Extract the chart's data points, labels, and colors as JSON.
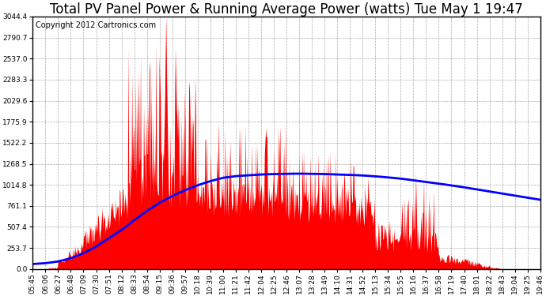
{
  "title": "Total PV Panel Power & Running Average Power (watts) Tue May 1 19:47",
  "copyright_text": "Copyright 2012 Cartronics.com",
  "background_color": "#ffffff",
  "plot_bg_color": "#ffffff",
  "grid_color": "#888888",
  "fill_color": "#ff0000",
  "line_color": "#0000ff",
  "ytick_labels": [
    "0.0",
    "253.7",
    "507.4",
    "761.1",
    "1014.8",
    "1268.5",
    "1522.2",
    "1775.9",
    "2029.6",
    "2283.3",
    "2537.0",
    "2790.7",
    "3044.4"
  ],
  "ytick_values": [
    0.0,
    253.7,
    507.4,
    761.1,
    1014.8,
    1268.5,
    1522.2,
    1775.9,
    2029.6,
    2283.3,
    2537.0,
    2790.7,
    3044.4
  ],
  "ymax": 3044.4,
  "ymin": 0.0,
  "xtick_labels": [
    "05:45",
    "06:06",
    "06:27",
    "06:48",
    "07:09",
    "07:30",
    "07:51",
    "08:12",
    "08:33",
    "08:54",
    "09:15",
    "09:36",
    "09:57",
    "10:18",
    "10:39",
    "11:00",
    "11:21",
    "11:42",
    "12:04",
    "12:25",
    "12:46",
    "13:07",
    "13:28",
    "13:49",
    "14:10",
    "14:31",
    "14:52",
    "15:13",
    "15:34",
    "15:55",
    "16:16",
    "16:37",
    "16:58",
    "17:19",
    "17:40",
    "18:01",
    "18:22",
    "18:43",
    "19:04",
    "19:25",
    "19:46"
  ],
  "num_xticks": 41,
  "title_fontsize": 12,
  "copyright_fontsize": 7,
  "tick_fontsize": 6.5,
  "line_width": 2.0,
  "avg_x": [
    0,
    1,
    2,
    3,
    4,
    5,
    6,
    7,
    8,
    9,
    10,
    11,
    12,
    13,
    14,
    15,
    16,
    17,
    18,
    19,
    20,
    21,
    22,
    23,
    24,
    25,
    26,
    27,
    28,
    29,
    30,
    31,
    32,
    33,
    34,
    35,
    36,
    37,
    38,
    39,
    40
  ],
  "avg_y": [
    60,
    70,
    90,
    130,
    190,
    270,
    370,
    470,
    590,
    700,
    800,
    880,
    950,
    1010,
    1060,
    1100,
    1120,
    1130,
    1140,
    1145,
    1148,
    1150,
    1148,
    1145,
    1140,
    1135,
    1128,
    1118,
    1105,
    1090,
    1070,
    1050,
    1030,
    1008,
    985,
    960,
    935,
    910,
    885,
    860,
    835
  ]
}
